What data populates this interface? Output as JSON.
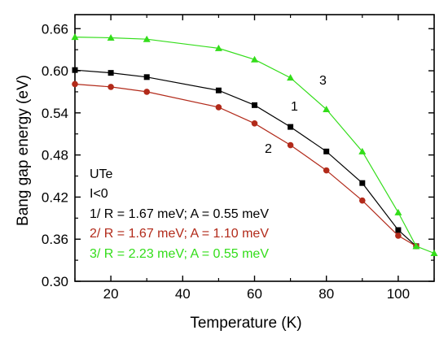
{
  "chart_data": {
    "type": "line",
    "xlabel": "Temperature (K)",
    "ylabel": "Bang gap energy (eV)",
    "xlim": [
      10,
      110
    ],
    "ylim": [
      0.3,
      0.68
    ],
    "xticks": [
      20,
      40,
      60,
      80,
      100
    ],
    "yticks": [
      "0.30",
      "0.36",
      "0.42",
      "0.48",
      "0.54",
      "0.60",
      "0.66"
    ],
    "grid": false,
    "series": [
      {
        "name": "1",
        "color": "#000000",
        "marker": "square",
        "x": [
          10,
          20,
          30,
          50,
          60,
          70,
          80,
          90,
          100,
          105
        ],
        "y": [
          0.601,
          0.597,
          0.591,
          0.572,
          0.551,
          0.52,
          0.485,
          0.44,
          0.373,
          0.35
        ]
      },
      {
        "name": "2",
        "color": "#b22a1a",
        "marker": "circle",
        "x": [
          10,
          20,
          30,
          50,
          60,
          70,
          80,
          90,
          100,
          105
        ],
        "y": [
          0.581,
          0.577,
          0.57,
          0.548,
          0.525,
          0.494,
          0.458,
          0.415,
          0.365,
          0.35
        ]
      },
      {
        "name": "3",
        "color": "#33dd1a",
        "marker": "triangle",
        "x": [
          10,
          20,
          30,
          50,
          60,
          70,
          80,
          90,
          100,
          105,
          110
        ],
        "y": [
          0.648,
          0.647,
          0.645,
          0.632,
          0.616,
          0.59,
          0.545,
          0.485,
          0.398,
          0.35,
          0.34
        ]
      }
    ],
    "curve_labels": [
      "1",
      "2",
      "3"
    ],
    "annotations": [
      {
        "text": "UTe",
        "color": "#000000"
      },
      {
        "text": "I<0",
        "color": "#000000"
      },
      {
        "text": "1/ R = 1.67 meV; A = 0.55 meV",
        "color": "#000000"
      },
      {
        "text": "2/ R = 1.67 meV; A = 1.10 meV",
        "color": "#b22a1a"
      },
      {
        "text": "3/ R = 2.23 meV; A = 0.55 meV",
        "color": "#33dd1a"
      }
    ]
  }
}
